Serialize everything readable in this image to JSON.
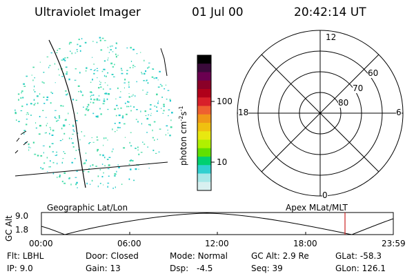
{
  "header": {
    "title": "Ultraviolet Imager",
    "date": "01 Jul 00",
    "time": "20:42:14 UT"
  },
  "colorbar": {
    "label": "photon cm",
    "label_exp1": "-2",
    "label_s": "s",
    "label_exp2": "-1",
    "ticks": [
      "100",
      "10"
    ],
    "colors": [
      "#000000",
      "#3a0a3a",
      "#6a0050",
      "#8a0028",
      "#b0001a",
      "#d8202a",
      "#ee6030",
      "#f09818",
      "#f0c010",
      "#e8e810",
      "#b0f000",
      "#60e000",
      "#00d070",
      "#30d0d0",
      "#a8e8e8",
      "#d8f0f0"
    ]
  },
  "polar_plot": {
    "mlt_labels": [
      "12",
      "18",
      "6",
      "0"
    ],
    "lat_labels": [
      "60",
      "70",
      "80"
    ]
  },
  "map_labels": {
    "left": "Geographic Lat/Lon",
    "right": "Apex MLat/MLT"
  },
  "altitude_plot": {
    "ylabel": "GC Alt",
    "yticks": [
      "9.0",
      "1.8"
    ],
    "xticks": [
      "00:00",
      "06:00",
      "12:00",
      "18:00",
      "23:59"
    ],
    "marker_color": "#cc2222"
  },
  "info": {
    "flt_label": "Flt:",
    "flt_value": "LBHL",
    "ip_label": "IP:",
    "ip_value": "9.0",
    "door_label": "Door:",
    "door_value": "Closed",
    "gain_label": "Gain:",
    "gain_value": "13",
    "mode_label": "Mode:",
    "mode_value": "Normal",
    "dsp_label": "Dsp:",
    "dsp_value": "-4.5",
    "gcalt_label": "GC Alt:",
    "gcalt_value": "2.9 Re",
    "seq_label": "Seq:",
    "seq_value": "39",
    "glat_label": "GLat:",
    "glat_value": "-58.3",
    "glon_label": "GLon:",
    "glon_value": "126.1"
  }
}
